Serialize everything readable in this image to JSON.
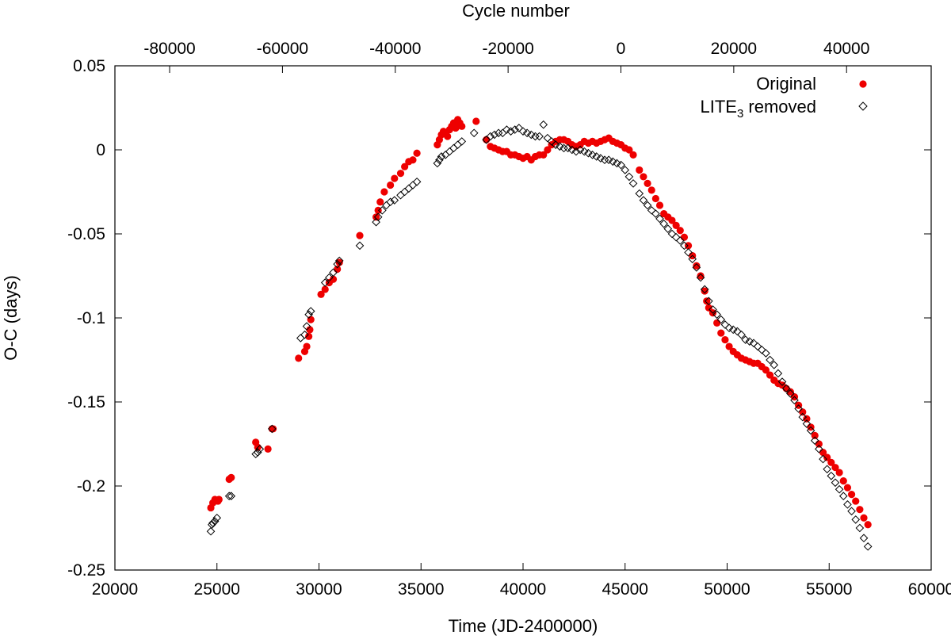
{
  "chart_data": {
    "type": "scatter",
    "xlabel": "Time (JD-2400000)",
    "ylabel": "O-C (days)",
    "x2label": "Cycle number",
    "xlim": [
      20000,
      60000
    ],
    "ylim": [
      -0.25,
      0.05
    ],
    "x2lim": [
      -89700,
      55000
    ],
    "x_ticks": [
      20000,
      25000,
      30000,
      35000,
      40000,
      45000,
      50000,
      55000,
      60000
    ],
    "y_ticks": [
      -0.25,
      -0.2,
      -0.15,
      -0.1,
      -0.05,
      0,
      0.05
    ],
    "x2_ticks": [
      -80000,
      -60000,
      -40000,
      -20000,
      0,
      20000,
      40000
    ],
    "legend_position": "top-right",
    "grid": false,
    "series": [
      {
        "name": "Original",
        "marker": "filled-circle",
        "color": "#ee0000",
        "points": [
          [
            24700,
            -0.213
          ],
          [
            24800,
            -0.21
          ],
          [
            24900,
            -0.208
          ],
          [
            25050,
            -0.209
          ],
          [
            25100,
            -0.208
          ],
          [
            25600,
            -0.196
          ],
          [
            25700,
            -0.195
          ],
          [
            26900,
            -0.174
          ],
          [
            27000,
            -0.177
          ],
          [
            27500,
            -0.178
          ],
          [
            27700,
            -0.166
          ],
          [
            27750,
            -0.166
          ],
          [
            29000,
            -0.124
          ],
          [
            29300,
            -0.12
          ],
          [
            29400,
            -0.117
          ],
          [
            29500,
            -0.111
          ],
          [
            29550,
            -0.107
          ],
          [
            29600,
            -0.101
          ],
          [
            30100,
            -0.086
          ],
          [
            30300,
            -0.083
          ],
          [
            30500,
            -0.079
          ],
          [
            30700,
            -0.077
          ],
          [
            30900,
            -0.071
          ],
          [
            31000,
            -0.067
          ],
          [
            32000,
            -0.051
          ],
          [
            32800,
            -0.04
          ],
          [
            32900,
            -0.036
          ],
          [
            33000,
            -0.031
          ],
          [
            33200,
            -0.025
          ],
          [
            33500,
            -0.021
          ],
          [
            33700,
            -0.017
          ],
          [
            34000,
            -0.014
          ],
          [
            34200,
            -0.01
          ],
          [
            34400,
            -0.007
          ],
          [
            34600,
            -0.006
          ],
          [
            34800,
            -0.002
          ],
          [
            35800,
            0.003
          ],
          [
            35900,
            0.006
          ],
          [
            36000,
            0.009
          ],
          [
            36100,
            0.011
          ],
          [
            36200,
            0.01
          ],
          [
            36300,
            0.008
          ],
          [
            36400,
            0.012
          ],
          [
            36500,
            0.014
          ],
          [
            36600,
            0.016
          ],
          [
            36700,
            0.013
          ],
          [
            36800,
            0.018
          ],
          [
            36900,
            0.016
          ],
          [
            37000,
            0.014
          ],
          [
            37700,
            0.017
          ],
          [
            38200,
            0.006
          ],
          [
            38400,
            0.002
          ],
          [
            38600,
            0.001
          ],
          [
            38800,
            0.0
          ],
          [
            39000,
            -0.001
          ],
          [
            39200,
            -0.001
          ],
          [
            39400,
            -0.003
          ],
          [
            39600,
            -0.003
          ],
          [
            39800,
            -0.004
          ],
          [
            40000,
            -0.005
          ],
          [
            40200,
            -0.004
          ],
          [
            40400,
            -0.006
          ],
          [
            40600,
            -0.004
          ],
          [
            40800,
            -0.003
          ],
          [
            41000,
            -0.003
          ],
          [
            41200,
            0.0
          ],
          [
            41400,
            0.003
          ],
          [
            41600,
            0.005
          ],
          [
            41800,
            0.006
          ],
          [
            42000,
            0.006
          ],
          [
            42200,
            0.005
          ],
          [
            42400,
            0.003
          ],
          [
            42600,
            0.002
          ],
          [
            42800,
            0.003
          ],
          [
            43000,
            0.005
          ],
          [
            43200,
            0.004
          ],
          [
            43400,
            0.005
          ],
          [
            43600,
            0.004
          ],
          [
            43800,
            0.005
          ],
          [
            44000,
            0.006
          ],
          [
            44200,
            0.007
          ],
          [
            44400,
            0.005
          ],
          [
            44600,
            0.004
          ],
          [
            44800,
            0.003
          ],
          [
            45000,
            0.001
          ],
          [
            45200,
            0.0
          ],
          [
            45400,
            -0.003
          ],
          [
            45700,
            -0.012
          ],
          [
            45900,
            -0.016
          ],
          [
            46100,
            -0.02
          ],
          [
            46300,
            -0.024
          ],
          [
            46500,
            -0.029
          ],
          [
            46700,
            -0.033
          ],
          [
            46900,
            -0.038
          ],
          [
            47100,
            -0.04
          ],
          [
            47300,
            -0.042
          ],
          [
            47500,
            -0.045
          ],
          [
            47700,
            -0.048
          ],
          [
            47900,
            -0.052
          ],
          [
            48100,
            -0.057
          ],
          [
            48300,
            -0.063
          ],
          [
            48500,
            -0.069
          ],
          [
            48700,
            -0.075
          ],
          [
            48900,
            -0.084
          ],
          [
            49000,
            -0.09
          ],
          [
            49100,
            -0.094
          ],
          [
            49300,
            -0.097
          ],
          [
            49500,
            -0.103
          ],
          [
            49700,
            -0.109
          ],
          [
            49900,
            -0.113
          ],
          [
            50100,
            -0.117
          ],
          [
            50300,
            -0.12
          ],
          [
            50500,
            -0.122
          ],
          [
            50700,
            -0.124
          ],
          [
            50900,
            -0.125
          ],
          [
            51100,
            -0.126
          ],
          [
            51300,
            -0.127
          ],
          [
            51500,
            -0.127
          ],
          [
            51700,
            -0.129
          ],
          [
            51900,
            -0.131
          ],
          [
            52100,
            -0.134
          ],
          [
            52300,
            -0.137
          ],
          [
            52500,
            -0.139
          ],
          [
            52700,
            -0.14
          ],
          [
            52900,
            -0.142
          ],
          [
            53100,
            -0.144
          ],
          [
            53300,
            -0.147
          ],
          [
            53500,
            -0.152
          ],
          [
            53700,
            -0.156
          ],
          [
            53900,
            -0.16
          ],
          [
            54100,
            -0.165
          ],
          [
            54300,
            -0.17
          ],
          [
            54500,
            -0.175
          ],
          [
            54700,
            -0.18
          ],
          [
            54900,
            -0.183
          ],
          [
            55100,
            -0.186
          ],
          [
            55300,
            -0.189
          ],
          [
            55500,
            -0.192
          ],
          [
            55700,
            -0.197
          ],
          [
            55900,
            -0.201
          ],
          [
            56100,
            -0.205
          ],
          [
            56300,
            -0.209
          ],
          [
            56500,
            -0.214
          ],
          [
            56700,
            -0.219
          ],
          [
            56900,
            -0.223
          ]
        ]
      },
      {
        "name": "LITE3 removed",
        "marker": "open-diamond",
        "color": "#000000",
        "points": [
          [
            24700,
            -0.227
          ],
          [
            24750,
            -0.223
          ],
          [
            24800,
            -0.222
          ],
          [
            24900,
            -0.221
          ],
          [
            25000,
            -0.219
          ],
          [
            25600,
            -0.206
          ],
          [
            25700,
            -0.206
          ],
          [
            26900,
            -0.181
          ],
          [
            27000,
            -0.18
          ],
          [
            27100,
            -0.178
          ],
          [
            27700,
            -0.166
          ],
          [
            29100,
            -0.112
          ],
          [
            29300,
            -0.11
          ],
          [
            29400,
            -0.105
          ],
          [
            29500,
            -0.098
          ],
          [
            29600,
            -0.096
          ],
          [
            30300,
            -0.079
          ],
          [
            30500,
            -0.076
          ],
          [
            30700,
            -0.073
          ],
          [
            30900,
            -0.068
          ],
          [
            31000,
            -0.066
          ],
          [
            32000,
            -0.057
          ],
          [
            32800,
            -0.043
          ],
          [
            32900,
            -0.04
          ],
          [
            33100,
            -0.036
          ],
          [
            33300,
            -0.033
          ],
          [
            33500,
            -0.031
          ],
          [
            33700,
            -0.03
          ],
          [
            34000,
            -0.027
          ],
          [
            34200,
            -0.025
          ],
          [
            34400,
            -0.023
          ],
          [
            34600,
            -0.021
          ],
          [
            34800,
            -0.019
          ],
          [
            35800,
            -0.008
          ],
          [
            35900,
            -0.006
          ],
          [
            36000,
            -0.004
          ],
          [
            36200,
            -0.003
          ],
          [
            36400,
            -0.001
          ],
          [
            36600,
            0.001
          ],
          [
            36800,
            0.003
          ],
          [
            37000,
            0.005
          ],
          [
            37600,
            0.01
          ],
          [
            38200,
            0.006
          ],
          [
            38400,
            0.008
          ],
          [
            38600,
            0.009
          ],
          [
            38800,
            0.01
          ],
          [
            39000,
            0.01
          ],
          [
            39200,
            0.012
          ],
          [
            39400,
            0.011
          ],
          [
            39600,
            0.012
          ],
          [
            39800,
            0.013
          ],
          [
            40000,
            0.011
          ],
          [
            40200,
            0.01
          ],
          [
            40400,
            0.009
          ],
          [
            40600,
            0.008
          ],
          [
            40800,
            0.008
          ],
          [
            41000,
            0.015
          ],
          [
            41200,
            0.007
          ],
          [
            41400,
            0.005
          ],
          [
            41600,
            0.003
          ],
          [
            41800,
            0.002
          ],
          [
            42000,
            0.001
          ],
          [
            42200,
            0.001
          ],
          [
            42400,
            0.0
          ],
          [
            42600,
            -0.001
          ],
          [
            42800,
            0.0
          ],
          [
            43000,
            -0.001
          ],
          [
            43200,
            -0.002
          ],
          [
            43400,
            -0.003
          ],
          [
            43600,
            -0.004
          ],
          [
            43800,
            -0.005
          ],
          [
            44000,
            -0.006
          ],
          [
            44200,
            -0.006
          ],
          [
            44400,
            -0.007
          ],
          [
            44600,
            -0.008
          ],
          [
            44800,
            -0.009
          ],
          [
            45000,
            -0.012
          ],
          [
            45200,
            -0.016
          ],
          [
            45400,
            -0.02
          ],
          [
            45700,
            -0.026
          ],
          [
            45900,
            -0.03
          ],
          [
            46100,
            -0.033
          ],
          [
            46300,
            -0.036
          ],
          [
            46500,
            -0.038
          ],
          [
            46700,
            -0.041
          ],
          [
            46900,
            -0.044
          ],
          [
            47100,
            -0.047
          ],
          [
            47300,
            -0.05
          ],
          [
            47500,
            -0.052
          ],
          [
            47700,
            -0.054
          ],
          [
            47900,
            -0.057
          ],
          [
            48100,
            -0.061
          ],
          [
            48300,
            -0.065
          ],
          [
            48500,
            -0.07
          ],
          [
            48700,
            -0.076
          ],
          [
            48900,
            -0.083
          ],
          [
            49100,
            -0.09
          ],
          [
            49300,
            -0.095
          ],
          [
            49500,
            -0.098
          ],
          [
            49700,
            -0.101
          ],
          [
            49900,
            -0.104
          ],
          [
            50100,
            -0.106
          ],
          [
            50300,
            -0.107
          ],
          [
            50500,
            -0.108
          ],
          [
            50700,
            -0.11
          ],
          [
            50900,
            -0.113
          ],
          [
            51100,
            -0.114
          ],
          [
            51300,
            -0.115
          ],
          [
            51500,
            -0.117
          ],
          [
            51700,
            -0.119
          ],
          [
            51900,
            -0.121
          ],
          [
            52100,
            -0.125
          ],
          [
            52300,
            -0.128
          ],
          [
            52500,
            -0.133
          ],
          [
            52700,
            -0.138
          ],
          [
            52900,
            -0.142
          ],
          [
            53100,
            -0.145
          ],
          [
            53300,
            -0.149
          ],
          [
            53500,
            -0.154
          ],
          [
            53700,
            -0.159
          ],
          [
            53900,
            -0.163
          ],
          [
            54100,
            -0.167
          ],
          [
            54300,
            -0.173
          ],
          [
            54500,
            -0.178
          ],
          [
            54700,
            -0.184
          ],
          [
            54900,
            -0.19
          ],
          [
            55100,
            -0.194
          ],
          [
            55300,
            -0.198
          ],
          [
            55500,
            -0.202
          ],
          [
            55700,
            -0.206
          ],
          [
            55900,
            -0.211
          ],
          [
            56100,
            -0.215
          ],
          [
            56300,
            -0.22
          ],
          [
            56500,
            -0.225
          ],
          [
            56700,
            -0.231
          ],
          [
            56900,
            -0.236
          ]
        ]
      }
    ]
  },
  "legend": {
    "original_label": "Original",
    "lite_label_main": "LITE",
    "lite_label_sub": "3",
    "lite_label_rest": " removed"
  }
}
